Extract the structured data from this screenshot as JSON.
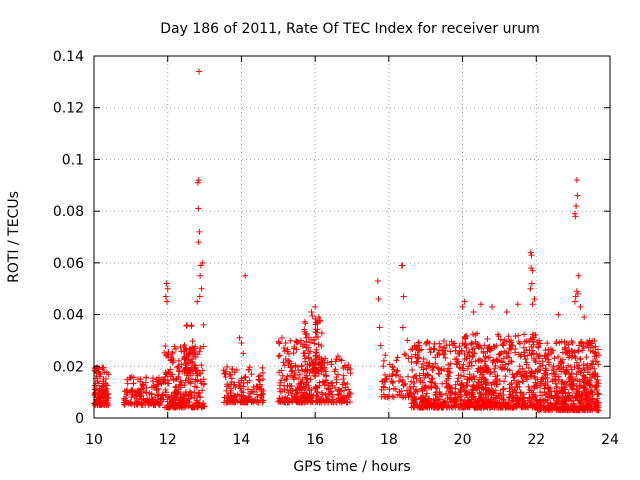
{
  "chart_data": {
    "type": "scatter",
    "title": "Day 186 of 2011, Rate Of TEC Index for receiver urum",
    "xlabel": "GPS time / hours",
    "ylabel": "ROTI / TECUs",
    "xlim": [
      10,
      24
    ],
    "ylim": [
      0,
      0.14
    ],
    "xticks": [
      10,
      12,
      14,
      16,
      18,
      20,
      22,
      24
    ],
    "xtick_labels": [
      "10",
      "12",
      "14",
      "16",
      "18",
      "20",
      "22",
      "24"
    ],
    "yticks": [
      0,
      0.02,
      0.04,
      0.06,
      0.08,
      0.1,
      0.12,
      0.14
    ],
    "ytick_labels": [
      "0",
      "0.02",
      "0.04",
      "0.06",
      "0.08",
      "0.1",
      "0.12",
      "0.14"
    ],
    "grid": true,
    "marker": "+",
    "marker_color": "#ff0000",
    "clusters": [
      {
        "x_start": 10.0,
        "x_end": 10.4,
        "y_low": 0.005,
        "y_high": 0.02,
        "n": 110
      },
      {
        "x_start": 10.8,
        "x_end": 11.9,
        "y_low": 0.005,
        "y_high": 0.016,
        "n": 150
      },
      {
        "x_start": 11.9,
        "x_end": 13.0,
        "y_low": 0.004,
        "y_high": 0.028,
        "n": 260
      },
      {
        "x_start": 12.4,
        "x_end": 12.8,
        "y_low": 0.018,
        "y_high": 0.036,
        "n": 40
      },
      {
        "x_start": 13.5,
        "x_end": 14.6,
        "y_low": 0.006,
        "y_high": 0.02,
        "n": 150
      },
      {
        "x_start": 15.0,
        "x_end": 15.8,
        "y_low": 0.006,
        "y_high": 0.03,
        "n": 170
      },
      {
        "x_start": 15.7,
        "x_end": 16.2,
        "y_low": 0.018,
        "y_high": 0.04,
        "n": 80
      },
      {
        "x_start": 15.8,
        "x_end": 17.0,
        "y_low": 0.006,
        "y_high": 0.024,
        "n": 170
      },
      {
        "x_start": 17.8,
        "x_end": 18.6,
        "y_low": 0.008,
        "y_high": 0.025,
        "n": 70
      },
      {
        "x_start": 18.6,
        "x_end": 20.0,
        "y_low": 0.004,
        "y_high": 0.03,
        "n": 340
      },
      {
        "x_start": 20.0,
        "x_end": 22.0,
        "y_low": 0.004,
        "y_high": 0.033,
        "n": 600
      },
      {
        "x_start": 22.0,
        "x_end": 23.7,
        "y_low": 0.003,
        "y_high": 0.03,
        "n": 560
      }
    ],
    "outliers": [
      [
        11.95,
        0.047
      ],
      [
        11.97,
        0.052
      ],
      [
        11.98,
        0.045
      ],
      [
        12.0,
        0.05
      ],
      [
        12.85,
        0.134
      ],
      [
        12.82,
        0.091
      ],
      [
        12.84,
        0.092
      ],
      [
        12.83,
        0.081
      ],
      [
        12.86,
        0.072
      ],
      [
        12.84,
        0.068
      ],
      [
        12.9,
        0.059
      ],
      [
        12.95,
        0.06
      ],
      [
        12.88,
        0.055
      ],
      [
        12.92,
        0.05
      ],
      [
        12.87,
        0.047
      ],
      [
        12.97,
        0.036
      ],
      [
        12.8,
        0.045
      ],
      [
        14.1,
        0.055
      ],
      [
        13.95,
        0.031
      ],
      [
        14.0,
        0.029
      ],
      [
        14.05,
        0.025
      ],
      [
        15.1,
        0.031
      ],
      [
        15.2,
        0.029
      ],
      [
        16.0,
        0.043
      ],
      [
        15.9,
        0.041
      ],
      [
        16.1,
        0.039
      ],
      [
        16.05,
        0.037
      ],
      [
        17.7,
        0.053
      ],
      [
        17.72,
        0.046
      ],
      [
        17.75,
        0.035
      ],
      [
        17.78,
        0.028
      ],
      [
        18.35,
        0.059
      ],
      [
        18.37,
        0.059
      ],
      [
        18.4,
        0.047
      ],
      [
        18.38,
        0.035
      ],
      [
        18.5,
        0.03
      ],
      [
        20.0,
        0.043
      ],
      [
        20.05,
        0.045
      ],
      [
        20.5,
        0.044
      ],
      [
        20.3,
        0.041
      ],
      [
        20.8,
        0.043
      ],
      [
        21.5,
        0.044
      ],
      [
        21.2,
        0.041
      ],
      [
        21.85,
        0.064
      ],
      [
        21.87,
        0.063
      ],
      [
        21.86,
        0.058
      ],
      [
        21.9,
        0.057
      ],
      [
        21.88,
        0.052
      ],
      [
        21.84,
        0.05
      ],
      [
        21.95,
        0.046
      ],
      [
        21.9,
        0.044
      ],
      [
        23.1,
        0.092
      ],
      [
        23.12,
        0.086
      ],
      [
        23.08,
        0.082
      ],
      [
        23.05,
        0.079
      ],
      [
        23.06,
        0.078
      ],
      [
        23.15,
        0.055
      ],
      [
        23.1,
        0.049
      ],
      [
        23.13,
        0.048
      ],
      [
        23.07,
        0.047
      ],
      [
        23.05,
        0.045
      ],
      [
        23.2,
        0.043
      ],
      [
        22.6,
        0.04
      ],
      [
        23.3,
        0.039
      ]
    ]
  }
}
